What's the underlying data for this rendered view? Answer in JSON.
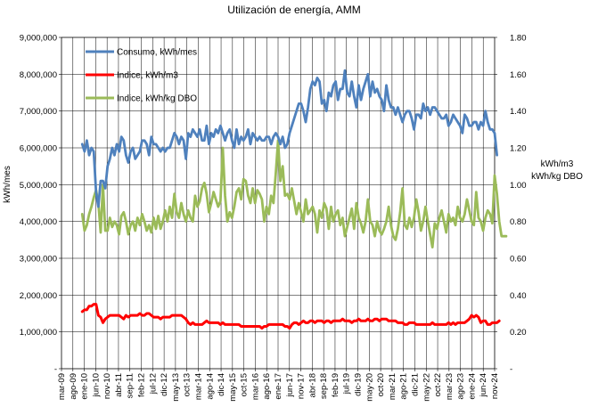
{
  "chart_data": {
    "type": "line",
    "title": "Utilización de energía, AMM",
    "ylabel": "kWh/mes",
    "y2label_lines": [
      "kWh/m3",
      "kWh/kg DBO"
    ],
    "ylim": [
      0,
      9000000
    ],
    "y2lim": [
      0,
      1.8
    ],
    "grid": true,
    "legend_position": "top-left",
    "y_ticks": [
      "-",
      "1,000,000",
      "2,000,000",
      "3,000,000",
      "4,000,000",
      "5,000,000",
      "6,000,000",
      "7,000,000",
      "8,000,000",
      "9,000,000"
    ],
    "y2_ticks": [
      "-",
      "0.20",
      "0.40",
      "0.60",
      "0.80",
      "1.00",
      "1.20",
      "1.40",
      "1.60",
      "1.80"
    ],
    "x_ticks": [
      "mar-09",
      "ago-09",
      "ene-10",
      "jun-10",
      "nov-10",
      "abr-11",
      "sep-11",
      "feb-12",
      "jul-12",
      "dic-12",
      "may-13",
      "oct-13",
      "mar-14",
      "ago-14",
      "dic-14",
      "may-15",
      "oct-15",
      "mar-16",
      "ago-16",
      "ene-17",
      "jun-17",
      "nov-17",
      "abr-18",
      "sep-18",
      "feb-19",
      "jul-19",
      "dic-19",
      "may-20",
      "oct-20",
      "mar-21",
      "ago-21",
      "dic-21",
      "may-22",
      "oct-22",
      "mar-23",
      "ago-23",
      "ene-24",
      "jun-24",
      "nov-24"
    ],
    "x_start": "2009-03",
    "x_end": "2024-11",
    "series": [
      {
        "name": "Consumo, kWh/mes",
        "color": "#4F81BD",
        "axis": "left",
        "start": "2009-12",
        "values": [
          6100000,
          5900000,
          6200000,
          5800000,
          6000000,
          5900000,
          4800000,
          4400000,
          5100000,
          5100000,
          4900000,
          5500000,
          5700000,
          6000000,
          5800000,
          6100000,
          5900000,
          6300000,
          6200000,
          5800000,
          5600000,
          5900000,
          6000000,
          5700000,
          5800000,
          5900000,
          6200000,
          6200000,
          6100000,
          5800000,
          6300000,
          6100000,
          6100000,
          6000000,
          5900000,
          6000000,
          5900000,
          6000000,
          6000000,
          6200000,
          6400000,
          6300000,
          6100000,
          6300000,
          6200000,
          5700000,
          6400000,
          6300000,
          6500000,
          6400000,
          6300000,
          6500000,
          6200000,
          6200000,
          6600000,
          6100000,
          6400000,
          6300000,
          6500000,
          6400000,
          6600000,
          6400000,
          6200000,
          6400000,
          6500000,
          6200000,
          6000000,
          6500000,
          6100000,
          6300000,
          6200000,
          6300000,
          6500000,
          6100000,
          6400000,
          6300000,
          6200000,
          6300000,
          6200000,
          6200000,
          6300000,
          6300000,
          6100000,
          6300000,
          6400000,
          6300000,
          6100000,
          6300000,
          6000000,
          6100000,
          6400000,
          6600000,
          6800000,
          7000000,
          7200000,
          7200000,
          7000000,
          6700000,
          7100000,
          7600000,
          7800000,
          7700000,
          7900000,
          7800000,
          7200000,
          7300000,
          7000000,
          7500000,
          7400000,
          7700000,
          7800000,
          7300000,
          7600000,
          7600000,
          8100000,
          7500000,
          7400000,
          7800000,
          7400000,
          7100000,
          7700000,
          7300000,
          7600000,
          7800000,
          8000000,
          7400000,
          7800000,
          7500000,
          7600000,
          7400000,
          7300000,
          7000000,
          7700000,
          7300000,
          7100000,
          7100000,
          6900000,
          7100000,
          6900000,
          6700000,
          6900000,
          7000000,
          7000000,
          6800000,
          6500000,
          6900000,
          6900000,
          6800000,
          7200000,
          7000000,
          7100000,
          6900000,
          7100000,
          7100000,
          7000000,
          6900000,
          6800000,
          6800000,
          6900000,
          6600000,
          6700000,
          6900000,
          6800000,
          6700000,
          6600000,
          6400000,
          6900000,
          6800000,
          6600000,
          6600000,
          6700000,
          6700000,
          6500000,
          6700000,
          6600000,
          7000000,
          6700000,
          6500000,
          6500000,
          6400000,
          5800000
        ]
      },
      {
        "name": "Indice, kWh/m3",
        "color": "#FF0000",
        "axis": "right",
        "start": "2009-12",
        "values": [
          0.31,
          0.32,
          0.32,
          0.34,
          0.34,
          0.35,
          0.35,
          0.29,
          0.28,
          0.25,
          0.27,
          0.28,
          0.29,
          0.29,
          0.29,
          0.29,
          0.29,
          0.28,
          0.27,
          0.29,
          0.28,
          0.29,
          0.29,
          0.29,
          0.29,
          0.3,
          0.29,
          0.29,
          0.3,
          0.3,
          0.29,
          0.28,
          0.28,
          0.28,
          0.27,
          0.28,
          0.28,
          0.28,
          0.28,
          0.29,
          0.29,
          0.29,
          0.29,
          0.29,
          0.28,
          0.27,
          0.25,
          0.24,
          0.25,
          0.24,
          0.24,
          0.24,
          0.24,
          0.25,
          0.26,
          0.25,
          0.25,
          0.25,
          0.25,
          0.25,
          0.24,
          0.25,
          0.24,
          0.24,
          0.24,
          0.24,
          0.24,
          0.24,
          0.24,
          0.23,
          0.23,
          0.23,
          0.23,
          0.23,
          0.23,
          0.23,
          0.23,
          0.23,
          0.22,
          0.23,
          0.23,
          0.24,
          0.24,
          0.24,
          0.24,
          0.24,
          0.24,
          0.24,
          0.23,
          0.23,
          0.22,
          0.24,
          0.25,
          0.25,
          0.24,
          0.25,
          0.26,
          0.25,
          0.25,
          0.26,
          0.26,
          0.25,
          0.26,
          0.26,
          0.26,
          0.25,
          0.26,
          0.26,
          0.25,
          0.26,
          0.26,
          0.26,
          0.26,
          0.27,
          0.26,
          0.26,
          0.26,
          0.25,
          0.26,
          0.26,
          0.27,
          0.26,
          0.26,
          0.26,
          0.27,
          0.26,
          0.26,
          0.27,
          0.27,
          0.26,
          0.27,
          0.27,
          0.27,
          0.26,
          0.26,
          0.26,
          0.26,
          0.25,
          0.25,
          0.25,
          0.24,
          0.24,
          0.25,
          0.25,
          0.25,
          0.24,
          0.24,
          0.24,
          0.24,
          0.24,
          0.24,
          0.24,
          0.25,
          0.24,
          0.24,
          0.24,
          0.24,
          0.24,
          0.24,
          0.25,
          0.24,
          0.25,
          0.24,
          0.25,
          0.25,
          0.25,
          0.25,
          0.26,
          0.27,
          0.29,
          0.28,
          0.29,
          0.28,
          0.25,
          0.26,
          0.26,
          0.24,
          0.24,
          0.25,
          0.25,
          0.25,
          0.26
        ]
      },
      {
        "name": "Indice, kWh/kg DBO",
        "color": "#9BBB59",
        "axis": "right",
        "start": "2009-12",
        "values": [
          0.84,
          0.75,
          0.78,
          0.84,
          0.88,
          0.93,
          0.97,
          0.9,
          0.74,
          1.0,
          0.75,
          0.75,
          0.82,
          0.77,
          0.8,
          0.78,
          0.73,
          0.83,
          0.85,
          0.8,
          0.73,
          0.78,
          0.8,
          0.75,
          0.82,
          0.78,
          0.84,
          0.8,
          0.75,
          0.78,
          0.74,
          0.82,
          0.76,
          0.83,
          0.76,
          0.8,
          0.86,
          0.8,
          0.88,
          0.82,
          0.95,
          0.85,
          0.82,
          0.9,
          0.84,
          0.8,
          0.86,
          0.82,
          0.8,
          0.94,
          0.88,
          0.91,
          0.98,
          1.01,
          0.95,
          0.85,
          0.9,
          0.96,
          0.92,
          0.88,
          0.91,
          1.2,
          0.94,
          0.8,
          0.85,
          0.82,
          0.88,
          0.96,
          0.98,
          0.92,
          1.03,
          1.02,
          0.94,
          0.9,
          0.98,
          0.9,
          0.97,
          0.95,
          0.92,
          0.8,
          0.88,
          0.84,
          0.94,
          0.9,
          1.06,
          1.24,
          1.02,
          1.1,
          0.94,
          0.95,
          0.92,
          0.98,
          0.91,
          0.84,
          0.9,
          0.85,
          0.8,
          0.92,
          0.84,
          0.86,
          0.88,
          0.84,
          0.74,
          0.86,
          0.82,
          0.9,
          0.87,
          0.76,
          0.88,
          0.8,
          0.84,
          0.86,
          0.78,
          0.82,
          0.72,
          0.77,
          0.82,
          0.87,
          0.76,
          0.9,
          0.82,
          0.79,
          0.74,
          0.8,
          0.92,
          0.8,
          0.78,
          0.72,
          0.8,
          0.75,
          0.73,
          0.76,
          0.8,
          0.88,
          0.78,
          0.72,
          0.7,
          0.76,
          0.85,
          0.98,
          0.78,
          0.76,
          0.82,
          0.77,
          0.82,
          0.92,
          0.85,
          0.75,
          0.8,
          0.88,
          0.8,
          0.73,
          0.66,
          0.79,
          0.76,
          0.82,
          0.86,
          0.8,
          0.74,
          0.84,
          0.8,
          0.82,
          0.78,
          0.88,
          0.82,
          0.8,
          0.84,
          0.92,
          0.86,
          0.8,
          0.78,
          0.96,
          0.82,
          0.8,
          0.75,
          0.82,
          0.86,
          0.84,
          0.79,
          1.05,
          0.95,
          0.8,
          0.72,
          0.72,
          0.72
        ]
      }
    ]
  }
}
